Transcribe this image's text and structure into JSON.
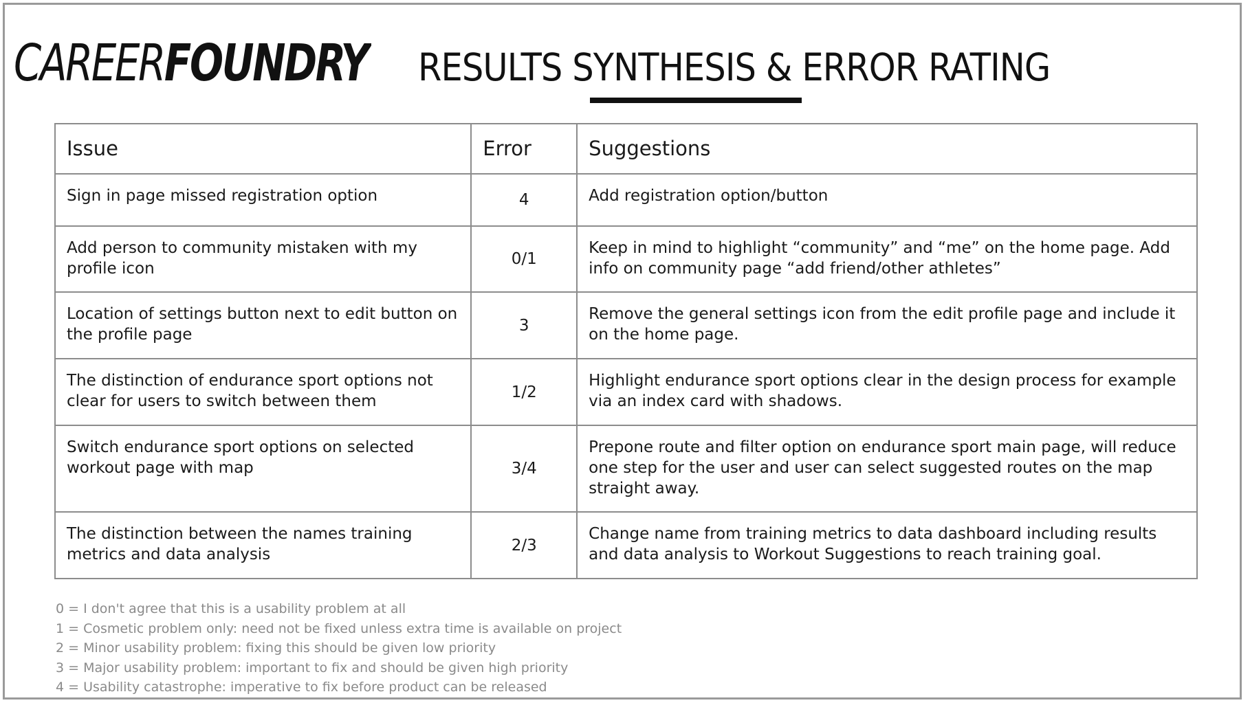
{
  "logo": {
    "part1": "CAREER",
    "part2": "FOUNDRY"
  },
  "title": "RESULTS SYNTHESIS & ERROR RATING",
  "table": {
    "headers": {
      "issue": "Issue",
      "error": "Error",
      "suggestions": "Suggestions"
    },
    "rows": [
      {
        "issue": "Sign in page missed registration option",
        "error": "4",
        "suggestion": "Add registration option/button"
      },
      {
        "issue": "Add person to community mistaken with my profile icon",
        "error": "0/1",
        "suggestion": "Keep in mind to highlight “community” and “me” on the home page. Add info on community page “add friend/other athletes”"
      },
      {
        "issue": "Location of settings button next to edit button on the profile page",
        "error": "3",
        "suggestion": "Remove the general settings icon from the edit profile page and include it on the home page."
      },
      {
        "issue": "The distinction of endurance sport options not clear for users to switch between them",
        "error": "1/2",
        "suggestion": "Highlight endurance sport options clear in the design process for example via an index card with shadows."
      },
      {
        "issue": "Switch endurance sport options on selected workout page with map",
        "error": "3/4",
        "suggestion": "Prepone route and filter option on endurance sport main page, will reduce one step for the user and user can select suggested routes on the map straight away."
      },
      {
        "issue": "The distinction between the names training metrics and data analysis",
        "error": "2/3",
        "suggestion": "Change name from training metrics to data dashboard including results and data analysis to Workout Suggestions to reach training goal."
      }
    ]
  },
  "legend": [
    "0 = I don't agree that this is a usability problem at all",
    "1 = Cosmetic problem only: need not be fixed unless extra time is available on project",
    "2 = Minor usability problem: fixing this should be given low priority",
    "3 = Major usability problem: important to fix and should be given high priority",
    "4 = Usability catastrophe: imperative to fix before product can be released"
  ]
}
